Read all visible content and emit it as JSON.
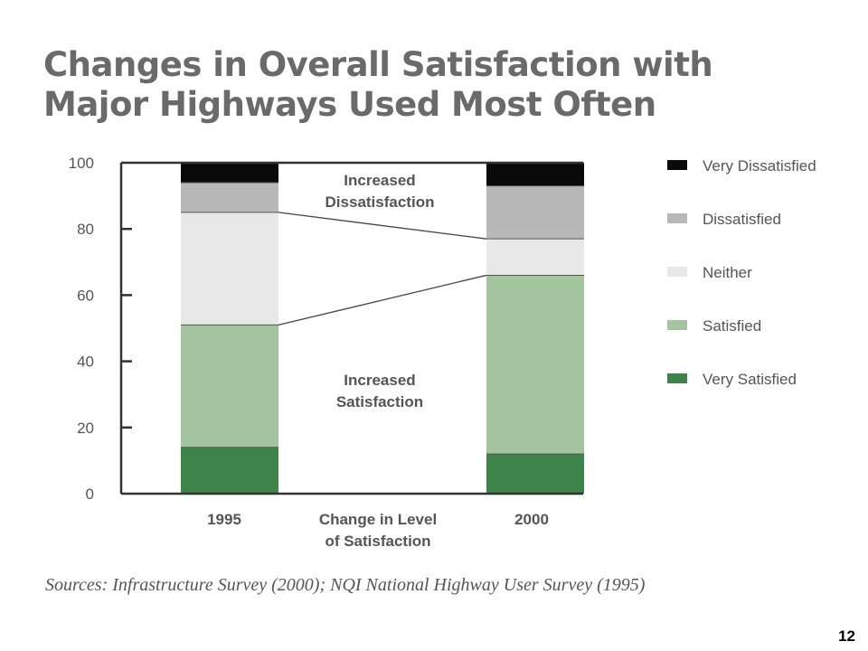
{
  "title": "Changes in Overall Satisfaction with Major Highways Used Most Often",
  "source": "Sources: Infrastructure Survey (2000); NQI National Highway User Survey (1995)",
  "page_number": "12",
  "chart_data": {
    "type": "bar",
    "stacked": true,
    "categories": [
      "1995",
      "2000"
    ],
    "ylim": [
      0,
      100
    ],
    "yticks": [
      "0",
      "20",
      "40",
      "60",
      "80",
      "100"
    ],
    "xlabel": "Change in Level of Satisfaction",
    "xlabel_lines": [
      "Change in Level",
      "of Satisfaction"
    ],
    "series": [
      {
        "name": "Very Satisfied",
        "color": "#3e834a",
        "values": [
          14,
          12
        ]
      },
      {
        "name": "Satisfied",
        "color": "#a3c49f",
        "values": [
          37,
          54
        ]
      },
      {
        "name": "Neither",
        "color": "#e8e8e8",
        "values": [
          34,
          11
        ]
      },
      {
        "name": "Dissatisfied",
        "color": "#b8b8b8",
        "values": [
          9,
          16
        ]
      },
      {
        "name": "Very Dissatisfied",
        "color": "#0a0a0a",
        "values": [
          6,
          7
        ]
      }
    ],
    "legend_order": [
      "Very Dissatisfied",
      "Dissatisfied",
      "Neither",
      "Satisfied",
      "Very Satisfied"
    ],
    "legend_position": "right",
    "annotations": [
      {
        "id": "increased-dissatisfaction",
        "lines": [
          "Increased",
          "Dissatisfaction"
        ]
      },
      {
        "id": "increased-satisfaction",
        "lines": [
          "Increased",
          "Satisfaction"
        ]
      }
    ],
    "grid": false
  }
}
